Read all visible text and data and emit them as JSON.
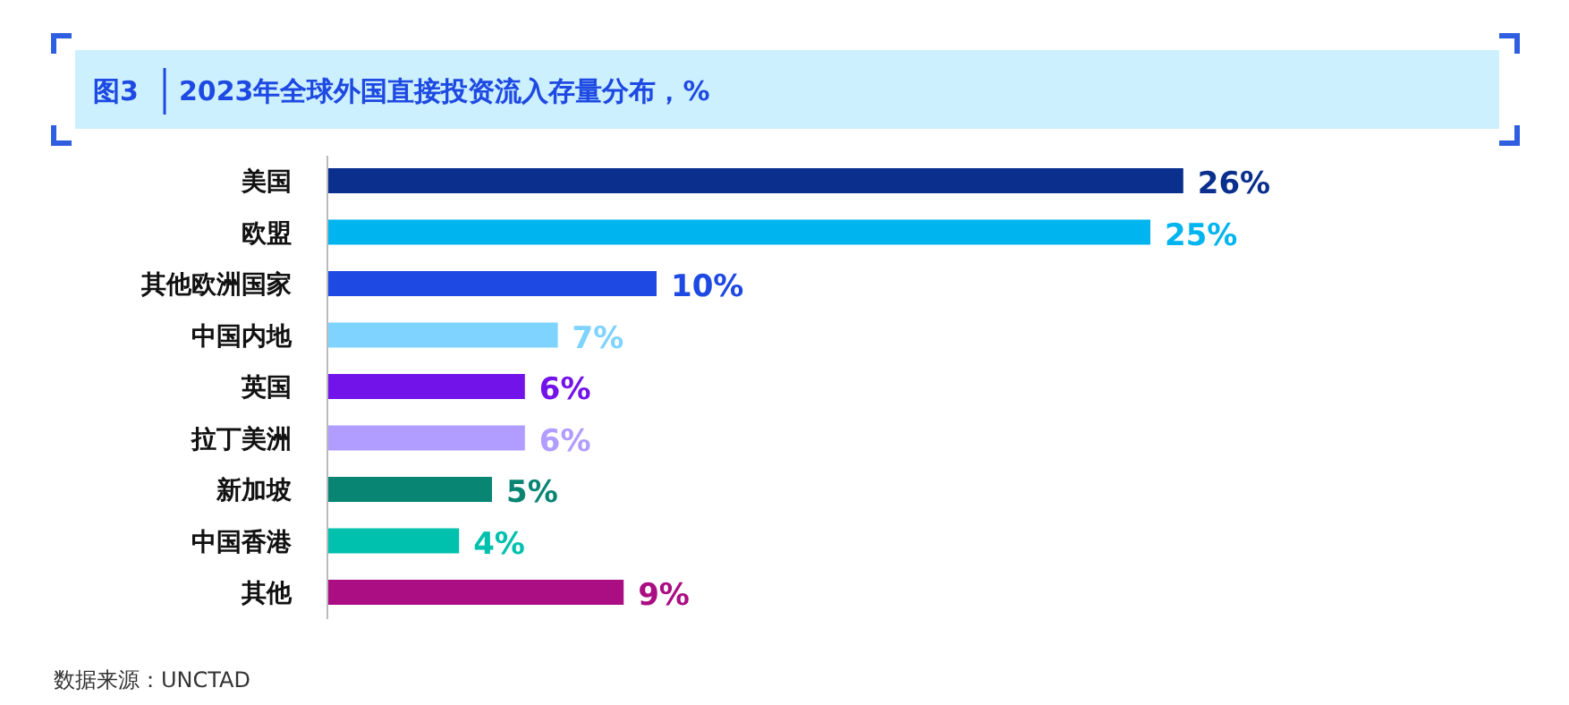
{
  "chart_data": {
    "type": "bar",
    "orientation": "horizontal",
    "title": "图3",
    "subtitle": "2023年全球外国直接投资流入存量分布，%",
    "categories": [
      "美国",
      "欧盟",
      "其他欧洲国家",
      "中国内地",
      "英国",
      "拉丁美洲",
      "新加坡",
      "中国香港",
      "其他"
    ],
    "values": [
      26,
      25,
      10,
      7,
      6,
      6,
      5,
      4,
      9
    ],
    "colors": [
      "#0a2f8c",
      "#00b5ef",
      "#1e49e2",
      "#7fd3ff",
      "#7213ea",
      "#b19cff",
      "#098574",
      "#00c0ae",
      "#ab0d82"
    ],
    "value_labels": [
      "26%",
      "25%",
      "10%",
      "7%",
      "6%",
      "6%",
      "5%",
      "4%",
      "9%"
    ],
    "annotations": [
      "数据来源：UNCTAD"
    ]
  }
}
